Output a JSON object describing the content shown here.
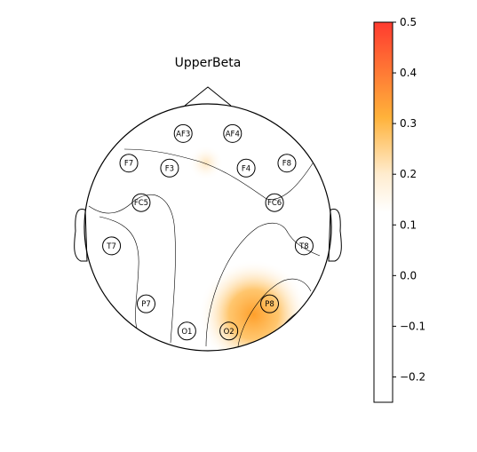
{
  "chart_data": {
    "type": "heatmap",
    "subtype": "eeg-topomap",
    "title": "UpperBeta",
    "electrodes": [
      {
        "name": "AF3",
        "x": -0.2,
        "y": 0.76
      },
      {
        "name": "AF4",
        "x": 0.2,
        "y": 0.76
      },
      {
        "name": "F7",
        "x": -0.64,
        "y": 0.52
      },
      {
        "name": "F3",
        "x": -0.31,
        "y": 0.48
      },
      {
        "name": "F4",
        "x": 0.31,
        "y": 0.48
      },
      {
        "name": "F8",
        "x": 0.64,
        "y": 0.52
      },
      {
        "name": "FC5",
        "x": -0.54,
        "y": 0.2
      },
      {
        "name": "FC6",
        "x": 0.54,
        "y": 0.2
      },
      {
        "name": "T7",
        "x": -0.78,
        "y": -0.15
      },
      {
        "name": "T8",
        "x": 0.78,
        "y": -0.15
      },
      {
        "name": "P7",
        "x": -0.5,
        "y": -0.62
      },
      {
        "name": "P8",
        "x": 0.5,
        "y": -0.62
      },
      {
        "name": "O1",
        "x": -0.17,
        "y": -0.84
      },
      {
        "name": "O2",
        "x": 0.17,
        "y": -0.84
      }
    ],
    "hotspots": [
      {
        "label": "P8-region",
        "x": 0.5,
        "y": -0.62,
        "value": 0.42
      },
      {
        "label": "F4-region",
        "x": 0.2,
        "y": 0.48,
        "value": 0.31
      }
    ],
    "colorbar": {
      "min": -0.25,
      "max": 0.5,
      "ticks": [
        {
          "value": 0.5,
          "label": "0.5"
        },
        {
          "value": 0.4,
          "label": "0.4"
        },
        {
          "value": 0.3,
          "label": "0.3"
        },
        {
          "value": 0.2,
          "label": "0.2"
        },
        {
          "value": 0.1,
          "label": "0.1"
        },
        {
          "value": 0.0,
          "label": "0.0"
        },
        {
          "value": -0.1,
          "label": "−0.1"
        },
        {
          "value": -0.2,
          "label": "−0.2"
        }
      ],
      "colors": {
        "high": "#ff3b2f",
        "mid": "#ffb23a",
        "low": "#ffffff"
      }
    },
    "grid": false
  }
}
